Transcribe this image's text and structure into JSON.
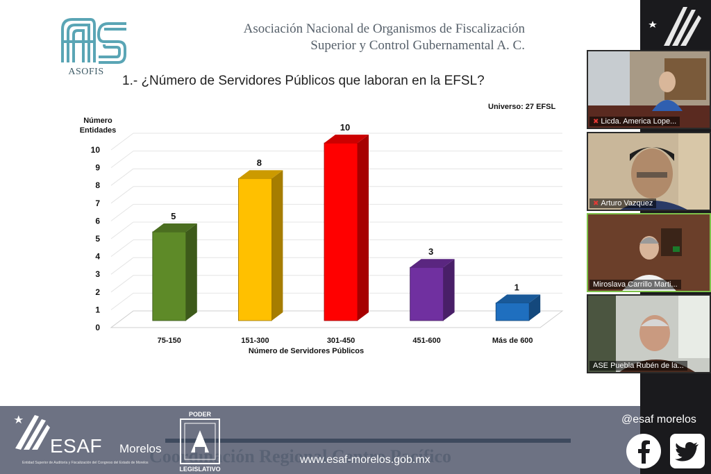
{
  "header": {
    "org_line1": "Asociación Nacional de Organismos de Fiscalización",
    "org_line2": "Superior y Control Gubernamental A. C.",
    "logo_text": "ASOFIS"
  },
  "slide": {
    "title": "1.- ¿Número de Servidores Públicos que laboran en la EFSL?",
    "universe": "Universo: 27 EFSL"
  },
  "chart_data": {
    "type": "bar",
    "categories": [
      "75-150",
      "151-300",
      "301-450",
      "451-600",
      "Más de 600"
    ],
    "values": [
      5,
      8,
      10,
      3,
      1
    ],
    "colors": [
      "#5e8a28",
      "#ffc000",
      "#ff0000",
      "#7030a0",
      "#1f6fbf"
    ],
    "ylabel_line1": "Número",
    "ylabel_line2": "Entidades",
    "xlabel": "Número de Servidores Públicos",
    "ylim": [
      0,
      10
    ],
    "yticks": [
      "0",
      "1",
      "2",
      "3",
      "4",
      "5",
      "6",
      "7",
      "8",
      "9",
      "10"
    ],
    "grid": true,
    "style": "3d-bar"
  },
  "participants": [
    {
      "name": "Licda. America Lope...",
      "muted": true,
      "active": false
    },
    {
      "name": "Arturo Vazquez",
      "muted": true,
      "active": false
    },
    {
      "name": "Miroslava Carrillo Marti...",
      "muted": false,
      "active": true
    },
    {
      "name": "ASE Puebla Rubén de la...",
      "muted": false,
      "active": false
    }
  ],
  "footer": {
    "brand": "ESAF",
    "brand_sub": "Morelos",
    "fine_print": "Entidad Superior de Auditoría y Fiscalización del Congreso del Estado de Morelos",
    "seal_top": "PODER",
    "seal_bottom": "LEGISLATIVO",
    "url": "www.esaf-morelos.gob.mx",
    "handle": "@esaf morelos",
    "ghost_text": "Coordinación Regional Centro Pacífico"
  },
  "colors": {
    "footer_bg": "#6d7283",
    "sidebar_bg": "#1a1a1d",
    "asofis_teal": "#5aa5b5",
    "active_border": "#7ec24a"
  }
}
